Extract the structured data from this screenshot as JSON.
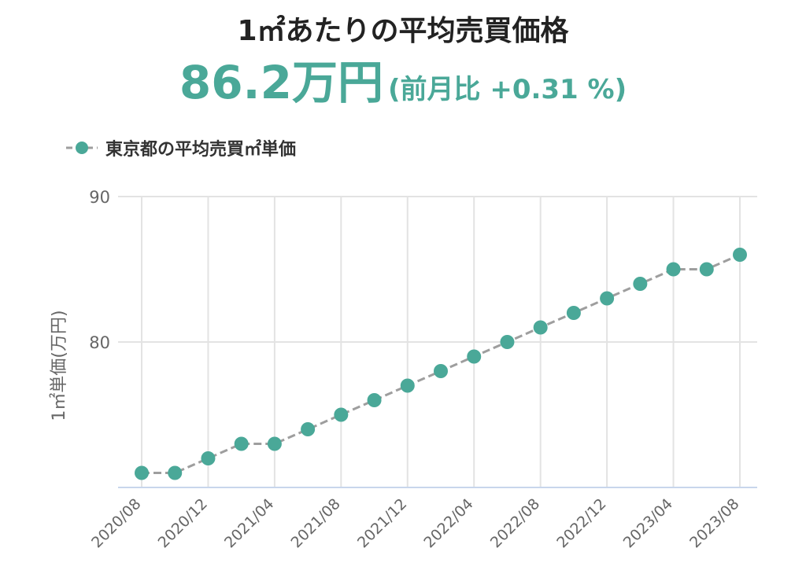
{
  "header": {
    "title": "1㎡あたりの平均売買価格",
    "price": "86.2万円",
    "change": "(前月比 +0.31 %)"
  },
  "colors": {
    "accent": "#4aa898",
    "line": "#9e9e9e",
    "grid": "#e3e3e3",
    "axis": "#c8d6ec"
  },
  "chart_data": {
    "type": "line",
    "title": "",
    "xlabel": "",
    "ylabel": "1㎡単価(万円)",
    "ylim": [
      70,
      90
    ],
    "yticks": [
      80,
      90
    ],
    "grid": true,
    "legend_position": "top-left",
    "xtick_labels": [
      "2020/08",
      "2020/12",
      "2021/04",
      "2021/08",
      "2021/12",
      "2022/04",
      "2022/08",
      "2022/12",
      "2023/04",
      "2023/08"
    ],
    "series": [
      {
        "name": "東京都の平均売買㎡単価",
        "x": [
          "2020/08",
          "2020/10",
          "2020/12",
          "2021/02",
          "2021/04",
          "2021/06",
          "2021/08",
          "2021/10",
          "2021/12",
          "2022/02",
          "2022/04",
          "2022/06",
          "2022/08",
          "2022/10",
          "2022/12",
          "2023/02",
          "2023/04",
          "2023/06",
          "2023/08"
        ],
        "values": [
          71.0,
          71.0,
          72.0,
          73.0,
          73.0,
          74.0,
          75.0,
          76.0,
          77.0,
          78.0,
          79.0,
          80.0,
          81.0,
          82.0,
          83.0,
          84.0,
          85.0,
          85.0,
          86.0
        ]
      }
    ]
  }
}
